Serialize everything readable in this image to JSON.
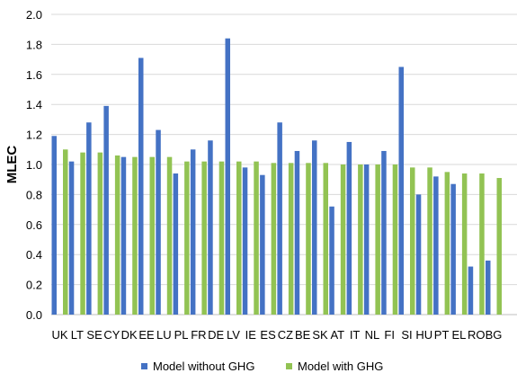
{
  "chart_data": {
    "type": "bar",
    "title": "",
    "xlabel": "",
    "ylabel": "MLEC",
    "ylim": [
      0,
      2.0
    ],
    "yticks": [
      "0.0",
      "0.2",
      "0.4",
      "0.6",
      "0.8",
      "1.0",
      "1.2",
      "1.4",
      "1.6",
      "1.8",
      "2.0"
    ],
    "grid": true,
    "legend_position": "bottom",
    "categories": [
      "UK",
      "LT",
      "SE",
      "CY",
      "DK",
      "EE",
      "LU",
      "PL",
      "FR",
      "DE",
      "LV",
      "IE",
      "ES",
      "CZ",
      "BE",
      "SK",
      "AT",
      "IT",
      "NL",
      "FI",
      "SI",
      "HU",
      "PT",
      "EL",
      "RO",
      "BG"
    ],
    "series": [
      {
        "name": "Model without GHG",
        "color": "#4472c4",
        "values": [
          1.19,
          1.02,
          1.28,
          1.39,
          1.05,
          1.71,
          1.23,
          0.94,
          1.1,
          1.16,
          1.84,
          0.98,
          0.93,
          1.28,
          1.09,
          1.16,
          0.72,
          1.15,
          1.0,
          1.09,
          1.65,
          0.8,
          0.92,
          0.87,
          0.32,
          0.36
        ]
      },
      {
        "name": "Model with GHG",
        "color": "#92c353",
        "values": [
          1.1,
          1.08,
          1.08,
          1.06,
          1.05,
          1.05,
          1.05,
          1.02,
          1.02,
          1.02,
          1.02,
          1.02,
          1.01,
          1.01,
          1.01,
          1.01,
          1.0,
          1.0,
          1.0,
          1.0,
          0.98,
          0.98,
          0.95,
          0.94,
          0.94,
          0.91
        ]
      }
    ]
  }
}
